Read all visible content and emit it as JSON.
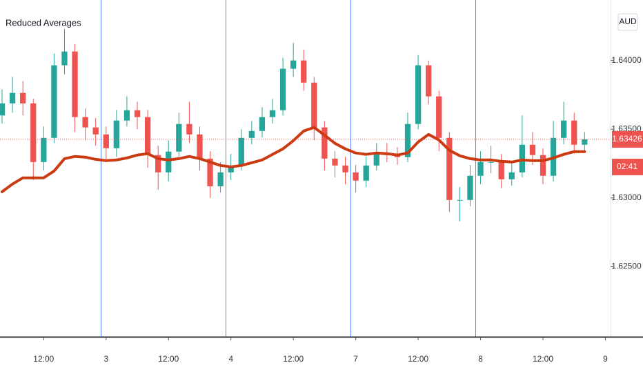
{
  "chart_data": {
    "type": "candlestick",
    "title": "Reduced Averages",
    "currency": "AUD",
    "countdown": "02:41",
    "up_color": "#26a69a",
    "down_color": "#ef5350",
    "separator_color": "#2962ff",
    "separators": [
      23,
      47,
      71,
      95
    ],
    "xlim": [
      3.6,
      121
    ],
    "xticks": [
      {
        "value": 12,
        "label": "12:00"
      },
      {
        "value": 24,
        "label": "3"
      },
      {
        "value": 36,
        "label": "12:00"
      },
      {
        "value": 48,
        "label": "4"
      },
      {
        "value": 60,
        "label": "12:00"
      },
      {
        "value": 72,
        "label": "7"
      },
      {
        "value": 84,
        "label": "12:00"
      },
      {
        "value": 96,
        "label": "8"
      },
      {
        "value": 108,
        "label": "12:00"
      },
      {
        "value": 120,
        "label": "9"
      }
    ],
    "ylim": [
      1.6199,
      1.6444
    ],
    "yticks": [
      {
        "value": 1.625,
        "label": "1.62500"
      },
      {
        "value": 1.63,
        "label": "1.63000"
      },
      {
        "value": 1.635,
        "label": "1.63500"
      },
      {
        "value": 1.64,
        "label": "1.64000"
      }
    ],
    "x": [
      4,
      6,
      8,
      10,
      12,
      14,
      16,
      18,
      20,
      22,
      24,
      26,
      28,
      30,
      32,
      34,
      36,
      38,
      40,
      42,
      44,
      46,
      48,
      50,
      52,
      54,
      56,
      58,
      60,
      62,
      64,
      66,
      68,
      70,
      72,
      74,
      76,
      78,
      80,
      82,
      84,
      86,
      88,
      90,
      92,
      94,
      96,
      98,
      100,
      102,
      104,
      106,
      108,
      110,
      112,
      114,
      116
    ],
    "open": [
      1.636,
      1.63688,
      1.63764,
      1.63688,
      1.63261,
      1.63437,
      1.63965,
      1.64065,
      1.63588,
      1.63513,
      1.63462,
      1.63362,
      1.63563,
      1.63638,
      1.63588,
      1.63312,
      1.63186,
      1.63337,
      1.63538,
      1.63462,
      1.63286,
      1.63085,
      1.63186,
      1.63236,
      1.63437,
      1.63487,
      1.63588,
      1.63638,
      1.6394,
      1.64,
      1.63839,
      1.63513,
      1.63286,
      1.63236,
      1.63186,
      1.63126,
      1.63236,
      1.63327,
      1.63312,
      1.63297,
      1.63538,
      1.63965,
      1.63739,
      1.63437,
      1.62985,
      1.62985,
      1.63161,
      1.63261,
      1.63261,
      1.63136,
      1.63186,
      1.63387,
      1.63312,
      1.63161,
      1.63437,
      1.63563,
      1.63387
    ],
    "high": [
      1.6379,
      1.6388,
      1.6385,
      1.6372,
      1.6352,
      1.6405,
      1.6423,
      1.6412,
      1.6365,
      1.6358,
      1.6352,
      1.6364,
      1.6374,
      1.637,
      1.6364,
      1.6338,
      1.6342,
      1.6362,
      1.637,
      1.6352,
      1.6334,
      1.6326,
      1.6332,
      1.635,
      1.6356,
      1.6366,
      1.6372,
      1.6402,
      1.6413,
      1.6408,
      1.6388,
      1.6356,
      1.6334,
      1.633,
      1.6324,
      1.633,
      1.634,
      1.634,
      1.6337,
      1.6362,
      1.6404,
      1.64,
      1.6378,
      1.6348,
      1.6308,
      1.6324,
      1.6334,
      1.6338,
      1.6332,
      1.6326,
      1.636,
      1.6348,
      1.6336,
      1.6356,
      1.637,
      1.6362,
      1.6348
    ],
    "low": [
      1.6354,
      1.6362,
      1.636,
      1.6313,
      1.632,
      1.634,
      1.639,
      1.6348,
      1.6342,
      1.6338,
      1.6326,
      1.633,
      1.6352,
      1.635,
      1.6322,
      1.6306,
      1.6312,
      1.633,
      1.634,
      1.632,
      1.63,
      1.6304,
      1.6313,
      1.632,
      1.6339,
      1.6344,
      1.6354,
      1.636,
      1.6388,
      1.6378,
      1.6342,
      1.632,
      1.6315,
      1.631,
      1.6304,
      1.6308,
      1.632,
      1.6326,
      1.6324,
      1.6326,
      1.635,
      1.6368,
      1.6334,
      1.629,
      1.6283,
      1.6294,
      1.631,
      1.6318,
      1.6307,
      1.6309,
      1.6315,
      1.6324,
      1.631,
      1.6312,
      1.6339,
      1.6332,
      1.6334
    ],
    "close": [
      1.63688,
      1.63764,
      1.63688,
      1.63261,
      1.63437,
      1.63965,
      1.64065,
      1.63588,
      1.63513,
      1.63462,
      1.63362,
      1.63563,
      1.63638,
      1.63588,
      1.63312,
      1.63186,
      1.63337,
      1.63538,
      1.63462,
      1.63286,
      1.63085,
      1.63186,
      1.63236,
      1.63437,
      1.63487,
      1.63588,
      1.63638,
      1.6394,
      1.64,
      1.63839,
      1.63513,
      1.63286,
      1.63236,
      1.63186,
      1.63126,
      1.63236,
      1.63327,
      1.63312,
      1.63297,
      1.63538,
      1.63965,
      1.63739,
      1.63437,
      1.62985,
      1.62985,
      1.63161,
      1.63261,
      1.63261,
      1.63136,
      1.63186,
      1.63387,
      1.63312,
      1.63161,
      1.63437,
      1.63563,
      1.63387,
      1.63426
    ],
    "moving_average": {
      "color": "#cc3a12",
      "values": [
        1.63045,
        1.63101,
        1.63146,
        1.63146,
        1.63146,
        1.63196,
        1.63286,
        1.63302,
        1.63297,
        1.63281,
        1.63271,
        1.63276,
        1.63291,
        1.63312,
        1.63322,
        1.63286,
        1.63276,
        1.63286,
        1.63302,
        1.63286,
        1.63261,
        1.63236,
        1.63226,
        1.63236,
        1.63256,
        1.63276,
        1.63317,
        1.63357,
        1.63417,
        1.63487,
        1.63513,
        1.63457,
        1.63397,
        1.63357,
        1.63327,
        1.63317,
        1.63327,
        1.63322,
        1.63312,
        1.63327,
        1.63407,
        1.63462,
        1.63422,
        1.63347,
        1.63307,
        1.63286,
        1.63276,
        1.63276,
        1.63266,
        1.63261,
        1.63276,
        1.63271,
        1.63271,
        1.63291,
        1.63317,
        1.63337,
        1.63337
      ]
    }
  }
}
